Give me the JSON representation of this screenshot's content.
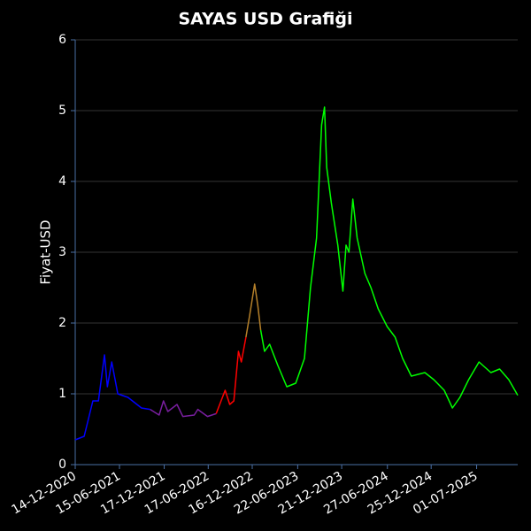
{
  "chart_data": {
    "type": "line",
    "title": "SAYAS USD Grafiği",
    "y_label": "Fiyat-USD",
    "xlim": [
      "14-12-2020",
      "18-12-2025"
    ],
    "xticks": [
      "14-12-2020",
      "15-06-2021",
      "17-12-2021",
      "17-06-2022",
      "16-12-2022",
      "22-06-2023",
      "21-12-2023",
      "27-06-2024",
      "25-12-2024",
      "01-07-2025"
    ],
    "ylim": [
      0,
      6
    ],
    "yticks": [
      0,
      1,
      2,
      3,
      4,
      5,
      6
    ],
    "grid": true,
    "series": [
      {
        "color": "#0000ff",
        "x": [
          "14-12-2020",
          "20-01-2021",
          "25-02-2021",
          "20-03-2021",
          "14-04-2021",
          "26-04-2021",
          "14-05-2021",
          "08-06-2021",
          "20-07-2021",
          "14-09-2021",
          "20-10-2021"
        ],
        "values": [
          0.35,
          0.4,
          0.9,
          0.9,
          1.55,
          1.1,
          1.45,
          1.0,
          0.95,
          0.8,
          0.78
        ]
      },
      {
        "color": "#7a1fa0",
        "x": [
          "20-10-2021",
          "26-11-2021",
          "14-12-2021",
          "01-01-2022",
          "08-02-2022",
          "04-03-2022",
          "20-04-2022",
          "05-05-2022",
          "14-06-2022",
          "20-07-2022"
        ],
        "values": [
          0.78,
          0.7,
          0.9,
          0.75,
          0.85,
          0.68,
          0.7,
          0.78,
          0.68,
          0.72
        ]
      },
      {
        "color": "#ff0000",
        "x": [
          "20-07-2022",
          "26-08-2022",
          "14-09-2022",
          "01-10-2022",
          "20-10-2022",
          "01-11-2022",
          "20-11-2022"
        ],
        "values": [
          0.72,
          1.05,
          0.85,
          0.9,
          1.6,
          1.45,
          1.8
        ]
      },
      {
        "color": "#b5802a",
        "x": [
          "20-11-2022",
          "05-12-2022",
          "26-12-2022",
          "08-01-2023",
          "20-01-2023"
        ],
        "values": [
          1.8,
          2.1,
          2.55,
          2.25,
          1.9
        ]
      },
      {
        "color": "#00ff00",
        "x": [
          "20-01-2023",
          "05-02-2023",
          "26-02-2023",
          "01-04-2023",
          "08-05-2023",
          "14-06-2023",
          "20-07-2023",
          "14-08-2023",
          "08-09-2023",
          "29-09-2023",
          "11-10-2023",
          "20-10-2023",
          "08-11-2023",
          "05-12-2023",
          "26-12-2023",
          "08-01-2024",
          "20-01-2024",
          "05-02-2024",
          "23-02-2024",
          "26-03-2024",
          "20-04-2024",
          "20-05-2024",
          "26-06-2024",
          "29-07-2024",
          "29-08-2024",
          "04-10-2024",
          "29-11-2024",
          "05-01-2025",
          "17-02-2025",
          "23-03-2025",
          "23-04-2025",
          "29-05-2025",
          "11-07-2025",
          "29-08-2025",
          "04-10-2025",
          "11-11-2025",
          "18-12-2025"
        ],
        "values": [
          1.9,
          1.6,
          1.7,
          1.4,
          1.1,
          1.15,
          1.5,
          2.5,
          3.2,
          4.8,
          5.05,
          4.2,
          3.7,
          3.1,
          2.45,
          3.1,
          3.0,
          3.75,
          3.2,
          2.7,
          2.5,
          2.2,
          1.95,
          1.8,
          1.5,
          1.25,
          1.3,
          1.2,
          1.05,
          0.8,
          0.95,
          1.2,
          1.45,
          1.3,
          1.35,
          1.2,
          0.98
        ]
      }
    ]
  }
}
